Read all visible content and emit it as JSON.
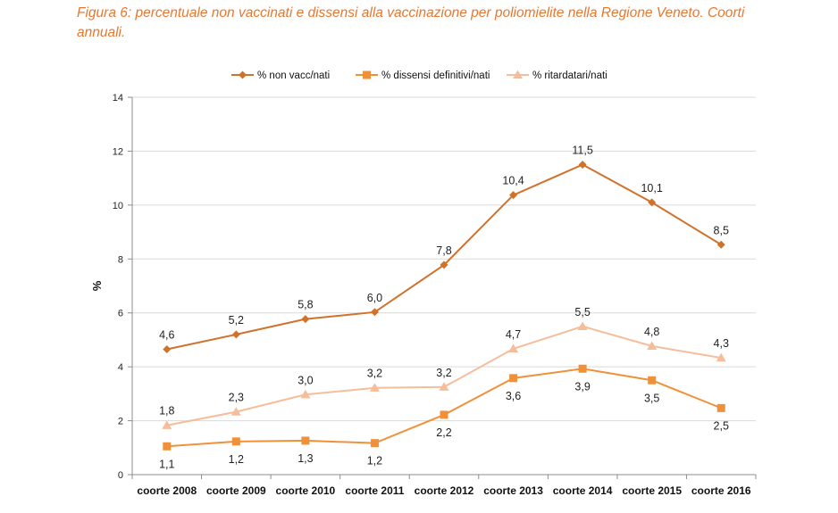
{
  "caption": "Figura 6: percentuale non vaccinati e dissensi alla vaccinazione per poliomielite nella Regione Veneto. Coorti annuali.",
  "chart_data": {
    "type": "line",
    "title": "",
    "xlabel": "",
    "ylabel": "%",
    "ylim": [
      0,
      14
    ],
    "yticks": [
      0,
      2,
      4,
      6,
      8,
      10,
      12,
      14
    ],
    "grid": true,
    "legend_position": "top",
    "categories": [
      "coorte 2008",
      "coorte 2009",
      "coorte 2010",
      "coorte 2011",
      "coorte 2012",
      "coorte 2013",
      "coorte 2014",
      "coorte 2015",
      "coorte 2016"
    ],
    "series": [
      {
        "name": "% non vacc/nati",
        "color": "#d0722c",
        "marker": "diamond",
        "values": [
          4.65,
          5.2,
          5.77,
          6.03,
          7.78,
          10.37,
          11.5,
          10.1,
          8.53
        ],
        "labels": [
          "4,6",
          "5,2",
          "5,8",
          "6,0",
          "7,8",
          "10,4",
          "11,5",
          "10,1",
          "8,5"
        ],
        "label_position": "above"
      },
      {
        "name": "% dissensi definitivi/nati",
        "color": "#f0913a",
        "marker": "square",
        "values": [
          1.05,
          1.23,
          1.26,
          1.17,
          2.22,
          3.58,
          3.93,
          3.5,
          2.47
        ],
        "labels": [
          "1,1",
          "1,2",
          "1,3",
          "1,2",
          "2,2",
          "3,6",
          "3,9",
          "3,5",
          "2,5"
        ],
        "label_position": "below"
      },
      {
        "name": "% ritardatari/nati",
        "color": "#f6bd9b",
        "marker": "triangle",
        "values": [
          1.83,
          2.33,
          2.97,
          3.22,
          3.25,
          4.67,
          5.5,
          4.77,
          4.33
        ],
        "labels": [
          "1,8",
          "2,3",
          "3,0",
          "3,2",
          "3,2",
          "4,7",
          "5,5",
          "4,8",
          "4,3"
        ],
        "label_position": "above"
      }
    ]
  }
}
